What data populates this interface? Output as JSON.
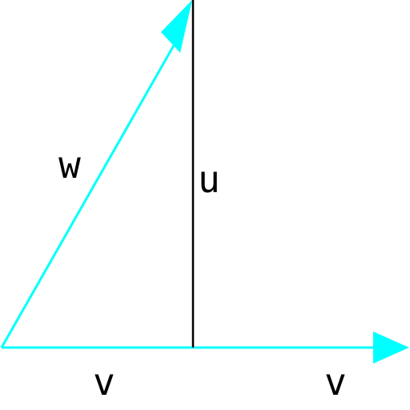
{
  "diagram": {
    "colors": {
      "vector": "#00ffff",
      "segment": "#000000",
      "label": "#000000",
      "background": "#ffffff"
    },
    "labels": {
      "w": "w",
      "u": "u",
      "v_left": "v",
      "v_right": "v"
    }
  }
}
